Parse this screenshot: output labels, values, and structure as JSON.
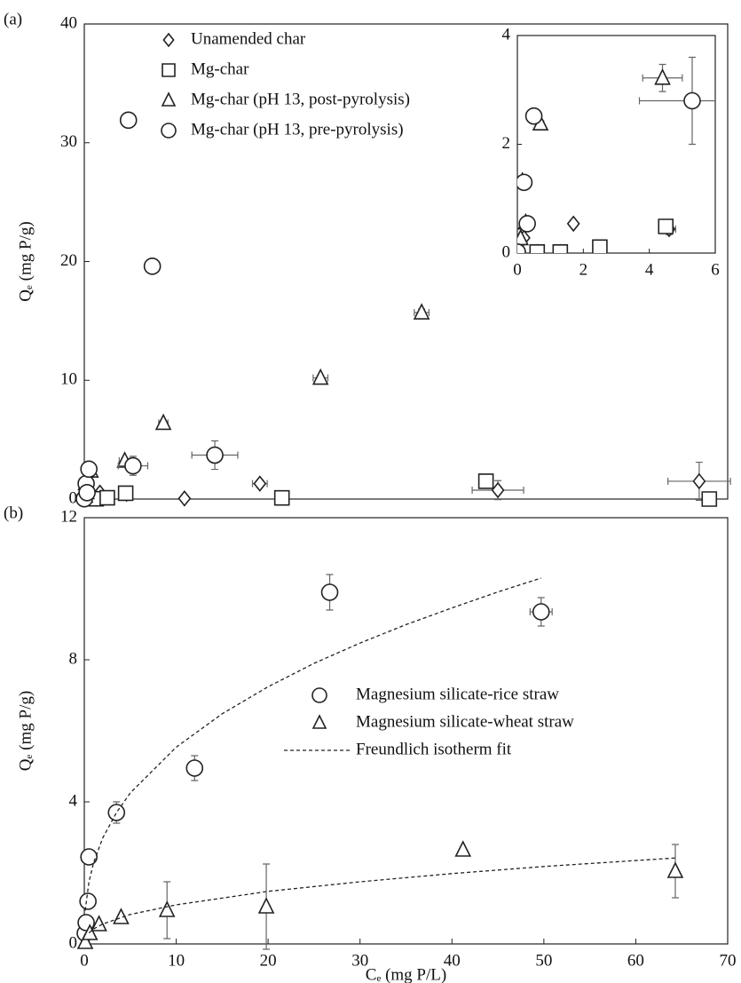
{
  "chart_data": [
    {
      "type": "scatter",
      "panel_label": "(a)",
      "y_label": "Qₑ (mg P/g)",
      "xlim": [
        0,
        70
      ],
      "ylim": [
        0,
        40
      ],
      "yticks": [
        0,
        10,
        20,
        30,
        40
      ],
      "legend": "upper left",
      "series": [
        {
          "name": "Unamended char",
          "marker": "diamond",
          "color": "#222222",
          "x": [
            0.2,
            0.6,
            1.3,
            1.7,
            4.6,
            10.9,
            19.1,
            45,
            66.9
          ],
          "values": [
            0.28,
            0.02,
            0.02,
            0.54,
            0.44,
            0.05,
            1.3,
            0.75,
            1.5
          ],
          "xerr": [
            null,
            null,
            null,
            null,
            0.2,
            null,
            0.8,
            2.8,
            3.4
          ],
          "yerr": [
            null,
            null,
            null,
            null,
            0.1,
            null,
            0.3,
            0.8,
            1.6
          ]
        },
        {
          "name": "Mg-char",
          "marker": "square",
          "color": "#222222",
          "x": [
            0.6,
            1.3,
            2.5,
            4.5,
            21.5,
            43.7,
            68
          ],
          "values": [
            0.02,
            0.02,
            0.11,
            0.49,
            0.1,
            1.5,
            0
          ],
          "xerr": [
            null,
            null,
            0.1,
            0.2,
            0.4,
            0.5,
            null
          ],
          "yerr": [
            null,
            null,
            null,
            null,
            null,
            null,
            null
          ]
        },
        {
          "name": "Mg-char (pH 13, post-pyrolysis)",
          "marker": "triangle",
          "color": "#222222",
          "x": [
            0.1,
            0.15,
            0.25,
            0.7,
            4.4,
            8.6,
            25.7,
            36.7
          ],
          "values": [
            0.27,
            1.32,
            0.56,
            2.38,
            3.22,
            6.4,
            10.2,
            15.7
          ],
          "xerr": [
            null,
            null,
            null,
            0.1,
            0.6,
            0.5,
            0.8,
            0.8
          ],
          "yerr": [
            null,
            null,
            null,
            null,
            0.25,
            0.2,
            0.2,
            0.3
          ]
        },
        {
          "name": "Mg-char (pH 13, pre-pyrolysis)",
          "marker": "circle",
          "color": "#222222",
          "x": [
            0,
            0.2,
            0.3,
            0.5,
            5.3,
            4.8,
            7.4,
            14.2
          ],
          "values": [
            0.02,
            1.3,
            0.54,
            2.52,
            2.8,
            31.9,
            19.6,
            3.7
          ],
          "xerr": [
            null,
            null,
            null,
            0.1,
            1.6,
            0.8,
            0.4,
            2.5
          ],
          "yerr": [
            null,
            null,
            null,
            null,
            0.8,
            0.6,
            0.2,
            1.2
          ]
        }
      ],
      "inset": {
        "xlim": [
          0,
          6
        ],
        "ylim": [
          0,
          4
        ],
        "xticks": [
          0,
          2,
          4,
          6
        ],
        "yticks": [
          0,
          2,
          4
        ]
      }
    },
    {
      "type": "scatter",
      "panel_label": "(b)",
      "x_label": "Cₑ (mg P/L)",
      "y_label": "Qₑ (mg P/g)",
      "xlim": [
        0,
        70
      ],
      "ylim": [
        0,
        12
      ],
      "xticks": [
        0,
        10,
        20,
        30,
        40,
        50,
        60,
        70
      ],
      "yticks": [
        0,
        4,
        8,
        12
      ],
      "legend": "center right",
      "series": [
        {
          "name": "Magnesium silicate-rice straw",
          "marker": "circle",
          "color": "#222222",
          "x": [
            0.1,
            0.2,
            0.4,
            0.5,
            3.5,
            12,
            26.7,
            49.7
          ],
          "values": [
            0.3,
            0.6,
            1.2,
            2.45,
            3.7,
            4.95,
            9.9,
            9.35
          ],
          "xerr": [
            null,
            null,
            null,
            0.3,
            0.5,
            0.5,
            0.6,
            1.2
          ],
          "yerr": [
            null,
            null,
            null,
            null,
            0.3,
            0.35,
            0.5,
            0.4
          ]
        },
        {
          "name": "Magnesium silicate-wheat straw",
          "marker": "triangle",
          "color": "#222222",
          "x": [
            0.1,
            0.6,
            1.6,
            4,
            9,
            19.8,
            41.2,
            64.3
          ],
          "values": [
            0.05,
            0.3,
            0.55,
            0.75,
            0.95,
            1.05,
            2.65,
            2.05
          ],
          "xerr": [
            null,
            null,
            null,
            null,
            null,
            null,
            null,
            null
          ],
          "yerr": [
            null,
            null,
            null,
            null,
            0.8,
            1.2,
            null,
            0.75
          ]
        },
        {
          "name": "Freundlich isotherm fit",
          "line_style": "dashed",
          "color": "#222222",
          "x": [
            0.1,
            0.5,
            1,
            2,
            3.5,
            5,
            10,
            15,
            20,
            25,
            30,
            35,
            40,
            45,
            49.7,
            null,
            0.5,
            1,
            2,
            5,
            10,
            20,
            30,
            40,
            50,
            64.3
          ],
          "values": [
            0.94,
            1.74,
            2.28,
            2.98,
            3.7,
            4.25,
            5.54,
            6.48,
            7.24,
            7.9,
            8.47,
            8.99,
            9.46,
            9.91,
            10.3,
            null,
            0.31,
            0.42,
            0.56,
            0.83,
            1.1,
            1.48,
            1.75,
            1.98,
            2.18,
            2.42
          ]
        }
      ]
    }
  ]
}
